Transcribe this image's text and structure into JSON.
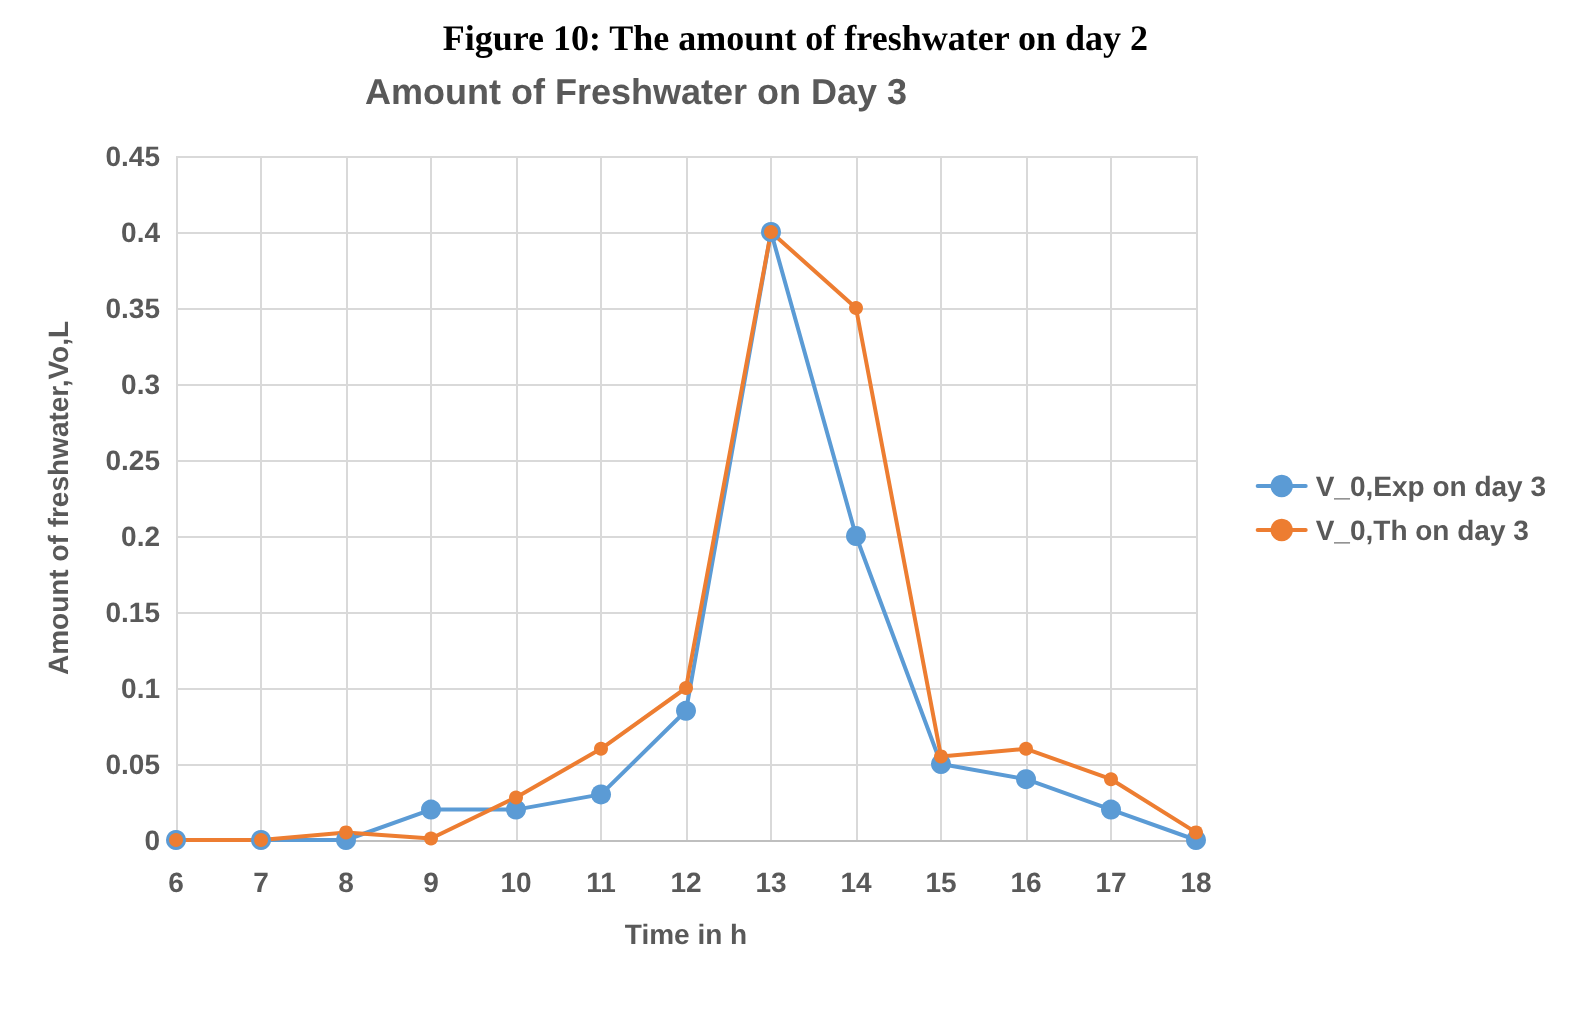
{
  "chart_data": {
    "type": "line",
    "title": "Amount of Freshwater on Day 3",
    "xlabel": "Time in h",
    "ylabel": "Amount of freshwater,Vo,L",
    "annotations": [
      "Figure 10: The amount of freshwater on day 2"
    ],
    "x": [
      6,
      7,
      8,
      9,
      10,
      11,
      12,
      13,
      14,
      15,
      16,
      17,
      18
    ],
    "series": [
      {
        "name": "V_0,Exp on day 3",
        "color": "#5b9bd5",
        "values": [
          0,
          0,
          0,
          0.02,
          0.02,
          0.03,
          0.085,
          0.4,
          0.2,
          0.05,
          0.04,
          0.02,
          0
        ]
      },
      {
        "name": "V_0,Th on day 3",
        "color": "#ed7d31",
        "values": [
          0,
          0,
          0.005,
          0.001,
          0.028,
          0.06,
          0.1,
          0.4,
          0.35,
          0.055,
          0.06,
          0.04,
          0.005
        ]
      }
    ],
    "xlim": [
      6,
      18
    ],
    "xticks": [
      6,
      7,
      8,
      9,
      10,
      11,
      12,
      13,
      14,
      15,
      16,
      17,
      18
    ],
    "ylim": [
      0,
      0.45
    ],
    "yticks": [
      0,
      0.05,
      0.1,
      0.15,
      0.2,
      0.25,
      0.3,
      0.35,
      0.4,
      0.45
    ],
    "grid": true,
    "legend": "right",
    "marker": "circle",
    "line_style": "solid"
  }
}
